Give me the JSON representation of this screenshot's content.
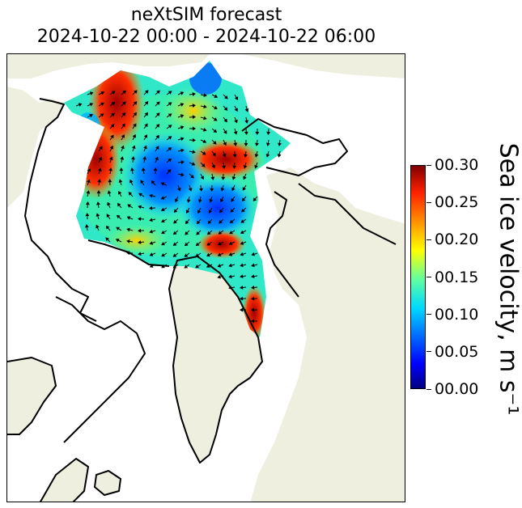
{
  "title": {
    "line1": "neXtSIM forecast",
    "line2": "2024-10-22 00:00 - 2024-10-22 06:00"
  },
  "colorbar": {
    "label": "Sea ice velocity, m s⁻¹",
    "min": 0.0,
    "max": 0.3,
    "ticks": [
      "00.00",
      "00.05",
      "00.10",
      "00.15",
      "00.20",
      "00.25",
      "00.30"
    ],
    "colormap": "jet"
  },
  "map": {
    "region": "Arctic",
    "land_color": "#efefdf",
    "ocean_color": "#ffffff",
    "coastline_color": "#000000",
    "field": "sea ice velocity",
    "vectors": "ice drift arrows"
  }
}
